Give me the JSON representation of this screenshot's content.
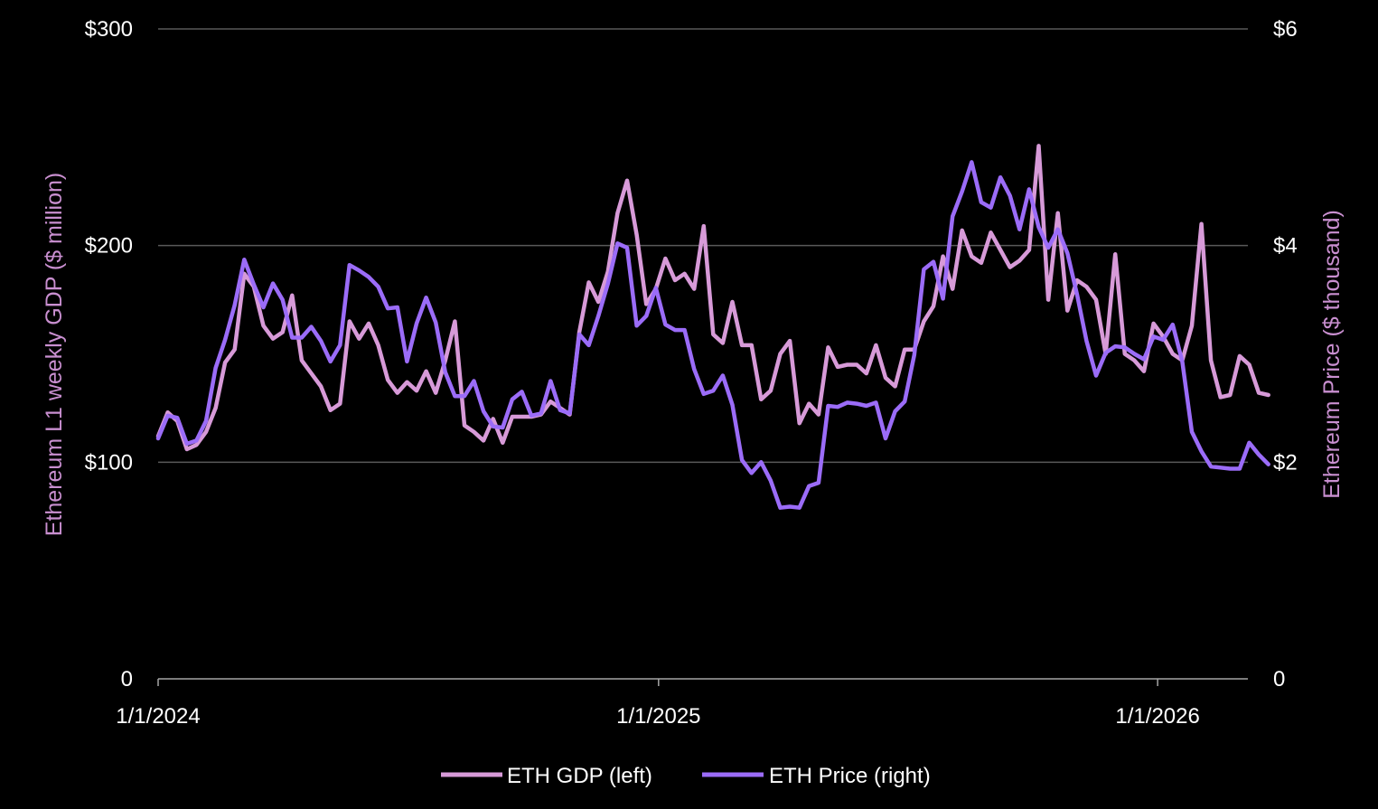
{
  "chart_data": {
    "type": "line",
    "title": "",
    "x_tick_labels": [
      "1/1/2024",
      "1/1/2025",
      "1/1/2026"
    ],
    "x_range": [
      "2024-01-01",
      "2026-03-08"
    ],
    "left_axis": {
      "label": "Ethereum L1 weekly GDP ($ million)",
      "tick_labels": [
        "0",
        "$100",
        "$200",
        "$300"
      ],
      "ylim": [
        0,
        300
      ]
    },
    "right_axis": {
      "label": "Ethereum Price ($ thousand)",
      "tick_labels": [
        "0",
        "$2",
        "$4",
        "$6"
      ],
      "ylim": [
        0,
        6
      ]
    },
    "grid": "horizontal",
    "legend_position": "bottom-center",
    "colors": {
      "background": "#000000",
      "gdp": "#d79ad8",
      "price": "#9b6cf8",
      "axis_label": "#c98fd0",
      "grid": "#595959"
    },
    "series": [
      {
        "name": "ETH GDP (left)",
        "axis": "left",
        "start": "2024-01-01",
        "interval_days": 7,
        "values": [
          112,
          123,
          119,
          106,
          108,
          114,
          125,
          146,
          152,
          187,
          181,
          163,
          157,
          160,
          177,
          147,
          141,
          135,
          124,
          127,
          165,
          157,
          164,
          154,
          138,
          132,
          137,
          133,
          142,
          132,
          147,
          165,
          117,
          114,
          110,
          120,
          109,
          121,
          121,
          121,
          122,
          128,
          125,
          122,
          160,
          183,
          174,
          188,
          215,
          230,
          205,
          173,
          180,
          194,
          184,
          187,
          180,
          209,
          159,
          155,
          174,
          154,
          154,
          129,
          133,
          150,
          156,
          118,
          127,
          122,
          153,
          144,
          145,
          145,
          141,
          154,
          139,
          135,
          152,
          152,
          165,
          172,
          195,
          180,
          207,
          195,
          192,
          206,
          198,
          190,
          193,
          198,
          246,
          175,
          215,
          170,
          184,
          181,
          175,
          150,
          196,
          150,
          147,
          142,
          164,
          158,
          150,
          147,
          163,
          210,
          147,
          130,
          131,
          149,
          145,
          132,
          131
        ]
      },
      {
        "name": "ETH Price (right)",
        "axis": "right",
        "start": "2024-01-01",
        "interval_days": 7,
        "values": [
          2.22,
          2.43,
          2.41,
          2.17,
          2.2,
          2.38,
          2.87,
          3.13,
          3.45,
          3.87,
          3.64,
          3.43,
          3.65,
          3.5,
          3.15,
          3.15,
          3.25,
          3.12,
          2.93,
          3.08,
          3.82,
          3.77,
          3.71,
          3.62,
          3.42,
          3.43,
          2.93,
          3.28,
          3.52,
          3.29,
          2.83,
          2.61,
          2.61,
          2.75,
          2.47,
          2.33,
          2.32,
          2.58,
          2.65,
          2.43,
          2.45,
          2.75,
          2.48,
          2.45,
          3.18,
          3.08,
          3.35,
          3.65,
          4.02,
          3.98,
          3.26,
          3.35,
          3.61,
          3.27,
          3.22,
          3.22,
          2.86,
          2.63,
          2.66,
          2.8,
          2.53,
          2.02,
          1.9,
          2.0,
          1.83,
          1.58,
          1.59,
          1.58,
          1.78,
          1.81,
          2.52,
          2.51,
          2.55,
          2.54,
          2.52,
          2.55,
          2.22,
          2.47,
          2.56,
          2.99,
          3.78,
          3.85,
          3.51,
          4.27,
          4.5,
          4.77,
          4.4,
          4.35,
          4.63,
          4.46,
          4.15,
          4.52,
          4.17,
          3.98,
          4.15,
          3.93,
          3.55,
          3.12,
          2.8,
          3.01,
          3.07,
          3.06,
          3.0,
          2.95,
          3.16,
          3.13,
          3.27,
          2.93,
          2.28,
          2.1,
          1.96,
          1.95,
          1.94,
          1.94,
          2.18,
          2.07,
          1.98
        ]
      }
    ]
  }
}
